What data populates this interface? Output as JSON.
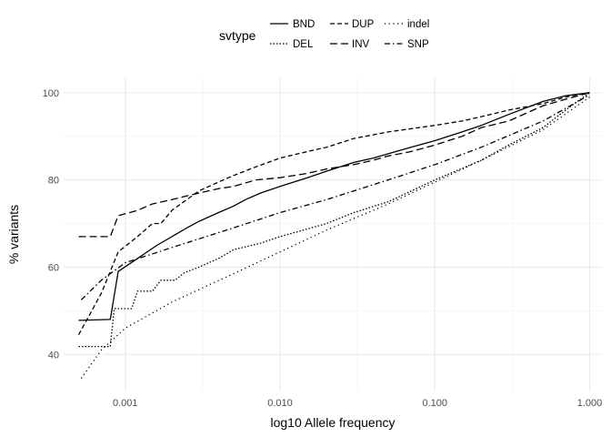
{
  "chart_data": {
    "type": "line",
    "xlabel": "log10 Allele frequency",
    "ylabel": "% variants",
    "x_scale": "log10",
    "xlim": [
      0.0004,
      1.2
    ],
    "ylim": [
      31.5,
      103.5
    ],
    "x_ticks": [
      0.001,
      0.01,
      0.1,
      1.0
    ],
    "x_tick_labels": [
      "0.001",
      "0.010",
      "0.100",
      "1.000"
    ],
    "y_ticks": [
      40,
      60,
      80,
      100
    ],
    "y_tick_labels": [
      "40",
      "60",
      "80",
      "100"
    ],
    "grid": true,
    "legend": {
      "title": "svtype",
      "position": "top",
      "entries": [
        {
          "label": "BND",
          "dash": "solid"
        },
        {
          "label": "DEL",
          "dash": "dotted-dense"
        },
        {
          "label": "DUP",
          "dash": "dashed"
        },
        {
          "label": "INV",
          "dash": "long-dashed"
        },
        {
          "label": "indel",
          "dash": "dotted"
        },
        {
          "label": "SNP",
          "dash": "dash-dot"
        }
      ]
    },
    "series": [
      {
        "name": "BND",
        "dash": "solid",
        "points": [
          [
            0.0005,
            47.8
          ],
          [
            0.0008,
            48.0
          ],
          [
            0.0009,
            59.0
          ],
          [
            0.0012,
            62.0
          ],
          [
            0.0016,
            65.0
          ],
          [
            0.002,
            67.0
          ],
          [
            0.0025,
            69.0
          ],
          [
            0.003,
            70.5
          ],
          [
            0.004,
            72.5
          ],
          [
            0.005,
            74.0
          ],
          [
            0.006,
            75.5
          ],
          [
            0.0075,
            77.0
          ],
          [
            0.01,
            78.5
          ],
          [
            0.015,
            80.5
          ],
          [
            0.02,
            82.0
          ],
          [
            0.03,
            84.0
          ],
          [
            0.04,
            85.0
          ],
          [
            0.05,
            86.0
          ],
          [
            0.07,
            87.5
          ],
          [
            0.1,
            89.0
          ],
          [
            0.15,
            91.0
          ],
          [
            0.2,
            92.5
          ],
          [
            0.3,
            95.0
          ],
          [
            0.5,
            98.0
          ],
          [
            0.7,
            99.3
          ],
          [
            1.0,
            100.0
          ]
        ]
      },
      {
        "name": "DEL",
        "dash": "dotted-dense",
        "points": [
          [
            0.0005,
            41.8
          ],
          [
            0.0008,
            41.8
          ],
          [
            0.00085,
            50.5
          ],
          [
            0.0011,
            50.5
          ],
          [
            0.0012,
            54.5
          ],
          [
            0.0015,
            54.5
          ],
          [
            0.0017,
            57.0
          ],
          [
            0.0021,
            57.0
          ],
          [
            0.0024,
            58.7
          ],
          [
            0.003,
            60.0
          ],
          [
            0.004,
            62.0
          ],
          [
            0.005,
            64.0
          ],
          [
            0.0075,
            65.5
          ],
          [
            0.01,
            67.0
          ],
          [
            0.02,
            70.0
          ],
          [
            0.03,
            72.5
          ],
          [
            0.05,
            75.0
          ],
          [
            0.1,
            80.0
          ],
          [
            0.2,
            84.5
          ],
          [
            0.3,
            88.0
          ],
          [
            0.5,
            92.0
          ],
          [
            0.7,
            96.0
          ],
          [
            1.0,
            100.0
          ]
        ]
      },
      {
        "name": "DUP",
        "dash": "dashed",
        "points": [
          [
            0.0005,
            44.5
          ],
          [
            0.0007,
            54.0
          ],
          [
            0.0009,
            63.5
          ],
          [
            0.0012,
            67.0
          ],
          [
            0.0015,
            70.0
          ],
          [
            0.0017,
            70.0
          ],
          [
            0.002,
            73.0
          ],
          [
            0.0025,
            75.5
          ],
          [
            0.003,
            77.5
          ],
          [
            0.004,
            79.5
          ],
          [
            0.005,
            81.0
          ],
          [
            0.007,
            83.0
          ],
          [
            0.01,
            85.0
          ],
          [
            0.015,
            86.5
          ],
          [
            0.02,
            87.5
          ],
          [
            0.03,
            89.5
          ],
          [
            0.05,
            91.0
          ],
          [
            0.1,
            92.5
          ],
          [
            0.15,
            93.5
          ],
          [
            0.2,
            94.5
          ],
          [
            0.3,
            96.0
          ],
          [
            0.5,
            97.5
          ],
          [
            0.7,
            99.0
          ],
          [
            1.0,
            100.0
          ]
        ]
      },
      {
        "name": "INV",
        "dash": "long-dashed",
        "points": [
          [
            0.0005,
            67.0
          ],
          [
            0.0008,
            67.0
          ],
          [
            0.0009,
            71.8
          ],
          [
            0.0012,
            73.0
          ],
          [
            0.0015,
            74.5
          ],
          [
            0.002,
            75.5
          ],
          [
            0.003,
            77.0
          ],
          [
            0.004,
            78.0
          ],
          [
            0.005,
            78.5
          ],
          [
            0.007,
            80.0
          ],
          [
            0.01,
            80.5
          ],
          [
            0.015,
            81.5
          ],
          [
            0.02,
            82.5
          ],
          [
            0.03,
            83.5
          ],
          [
            0.04,
            84.5
          ],
          [
            0.05,
            85.5
          ],
          [
            0.07,
            86.5
          ],
          [
            0.1,
            88.0
          ],
          [
            0.15,
            90.0
          ],
          [
            0.2,
            92.0
          ],
          [
            0.3,
            93.5
          ],
          [
            0.5,
            97.0
          ],
          [
            0.7,
            98.5
          ],
          [
            1.0,
            100.0
          ]
        ]
      },
      {
        "name": "indel",
        "dash": "dotted",
        "points": [
          [
            0.00052,
            34.5
          ],
          [
            0.0007,
            41.0
          ],
          [
            0.001,
            46.0
          ],
          [
            0.002,
            52.0
          ],
          [
            0.005,
            58.5
          ],
          [
            0.01,
            63.5
          ],
          [
            0.02,
            68.5
          ],
          [
            0.05,
            74.5
          ],
          [
            0.1,
            79.5
          ],
          [
            0.2,
            84.5
          ],
          [
            0.5,
            91.5
          ],
          [
            1.0,
            99.0
          ]
        ]
      },
      {
        "name": "SNP",
        "dash": "dash-dot",
        "points": [
          [
            0.00052,
            52.5
          ],
          [
            0.0007,
            57.0
          ],
          [
            0.001,
            61.0
          ],
          [
            0.002,
            64.5
          ],
          [
            0.005,
            69.0
          ],
          [
            0.01,
            72.5
          ],
          [
            0.02,
            75.5
          ],
          [
            0.05,
            80.0
          ],
          [
            0.1,
            83.5
          ],
          [
            0.2,
            87.5
          ],
          [
            0.5,
            93.5
          ],
          [
            1.0,
            99.5
          ]
        ]
      }
    ]
  }
}
